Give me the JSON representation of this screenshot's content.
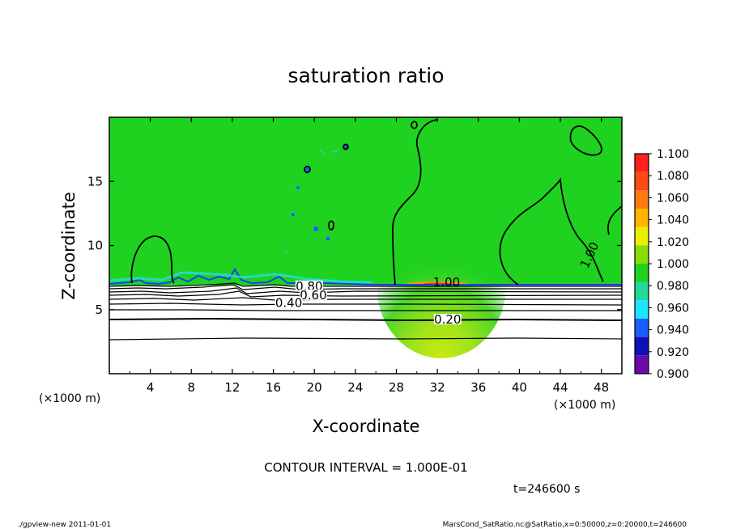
{
  "chart_data": {
    "type": "contour",
    "title": "saturation ratio",
    "xlabel": "X-coordinate",
    "ylabel": "Z-coordinate",
    "x_unit_left": "(×1000 m)",
    "x_unit_right": "(×1000 m)",
    "x_ticks": [
      4,
      8,
      12,
      16,
      20,
      24,
      28,
      32,
      36,
      40,
      44,
      48
    ],
    "y_ticks": [
      5,
      10,
      15
    ],
    "xlim": [
      0,
      50
    ],
    "ylim": [
      0,
      20
    ],
    "contour_labels": [
      {
        "text": "1.00",
        "x": 32.9,
        "z": 7.0
      },
      {
        "text": "1.00",
        "x": 47.0,
        "z": 9.2
      },
      {
        "text": "0.80",
        "x": 19.5,
        "z": 6.7
      },
      {
        "text": "0.60",
        "x": 19.9,
        "z": 6.0
      },
      {
        "text": "0.40",
        "x": 17.5,
        "z": 5.4
      },
      {
        "text": "0.20",
        "x": 33.0,
        "z": 4.1
      }
    ],
    "colorbar": {
      "labels": [
        "1.100",
        "1.080",
        "1.060",
        "1.040",
        "1.020",
        "1.000",
        "0.980",
        "0.960",
        "0.940",
        "0.920",
        "0.900"
      ],
      "colors": [
        "#ff2020",
        "#ff4a1a",
        "#ff7a10",
        "#ffb400",
        "#e9ee00",
        "#8adc08",
        "#1fd21f",
        "#22d99a",
        "#1fe4ff",
        "#1a5dff",
        "#1010b4",
        "#6a0aa8"
      ]
    },
    "contour_interval": "CONTOUR INTERVAL = 1.000E-01",
    "time": "t=246600 s"
  },
  "footer": {
    "left": "./gpview-new   2011-01-01",
    "right": "MarsCond_SatRatio.nc@SatRatio,x=0:50000,z=0:20000,t=246600"
  }
}
